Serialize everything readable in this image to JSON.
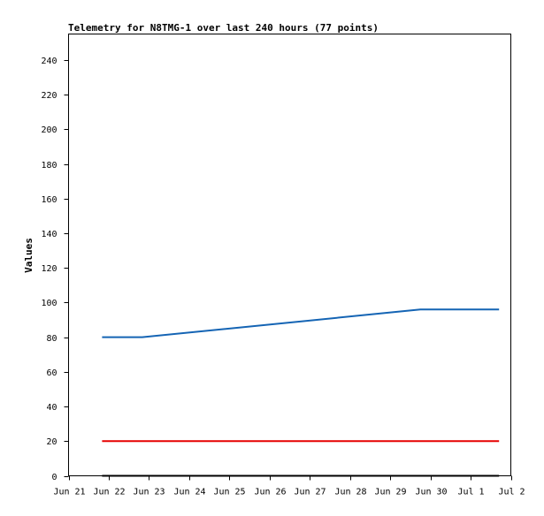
{
  "chart_data": {
    "type": "line",
    "title": "Telemetry for N8TMG-1 over last 240 hours (77 points)",
    "xlabel": "",
    "ylabel": "Values",
    "x_ticks": [
      "Jun 21",
      "Jun 22",
      "Jun 23",
      "Jun 24",
      "Jun 25",
      "Jun 26",
      "Jun 27",
      "Jun 28",
      "Jun 29",
      "Jun 30",
      "Jul 1",
      "Jul 2"
    ],
    "xlim": [
      "2024-06-21T00:00",
      "2024-07-02T00:00"
    ],
    "y_ticks": [
      0,
      20,
      40,
      60,
      80,
      100,
      120,
      140,
      160,
      180,
      200,
      220,
      240
    ],
    "ylim": [
      0,
      255
    ],
    "grid": false,
    "legend": "none",
    "series": [
      {
        "color": "#1464b4",
        "points": [
          {
            "x": "2024-06-21T20:00",
            "y": 80
          },
          {
            "x": "2024-06-22T20:00",
            "y": 80
          },
          {
            "x": "2024-06-29T18:00",
            "y": 96
          },
          {
            "x": "2024-07-01T17:00",
            "y": 96
          }
        ]
      },
      {
        "color": "#e60000",
        "points": [
          {
            "x": "2024-06-21T20:00",
            "y": 20
          },
          {
            "x": "2024-07-01T17:00",
            "y": 20
          }
        ]
      },
      {
        "color": "#000000",
        "points": [
          {
            "x": "2024-06-21T20:00",
            "y": 0
          },
          {
            "x": "2024-07-01T17:00",
            "y": 0
          }
        ]
      }
    ]
  }
}
